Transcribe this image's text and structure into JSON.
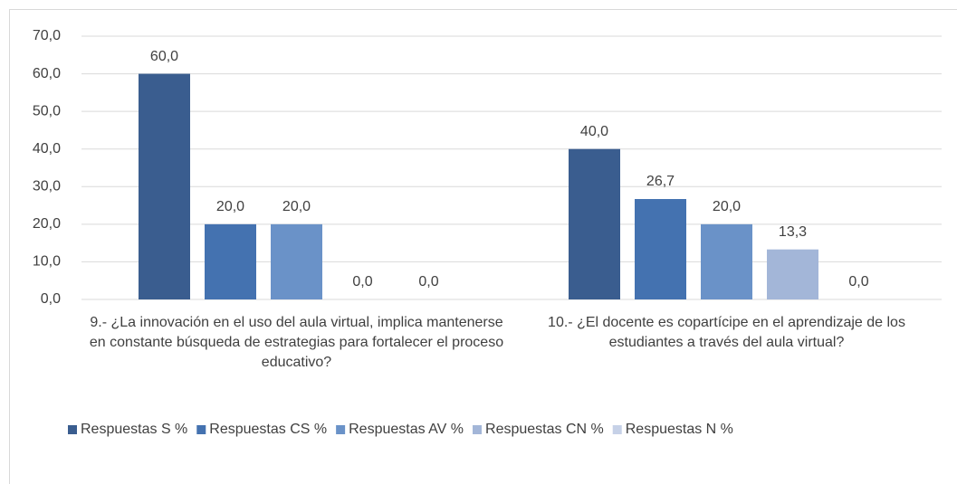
{
  "chart_data": {
    "type": "bar",
    "categories": [
      "9.- ¿La innovación en el uso del aula virtual, implica mantenerse en constante búsqueda de estrategias para fortalecer el proceso educativo?",
      "10.- ¿El docente es copartícipe en el aprendizaje de los estudiantes a través del aula virtual?"
    ],
    "series": [
      {
        "name": "Respuestas S %",
        "color": "#3a5d8f",
        "values": [
          60.0,
          40.0
        ],
        "value_labels": [
          "60,0",
          "40,0"
        ]
      },
      {
        "name": "Respuestas CS %",
        "color": "#4472b0",
        "values": [
          20.0,
          26.7
        ],
        "value_labels": [
          "20,0",
          "26,7"
        ]
      },
      {
        "name": "Respuestas AV %",
        "color": "#6a92c8",
        "values": [
          20.0,
          20.0
        ],
        "value_labels": [
          "20,0",
          "20,0"
        ]
      },
      {
        "name": "Respuestas CN %",
        "color": "#a3b6d8",
        "values": [
          0.0,
          13.3
        ],
        "value_labels": [
          "0,0",
          "13,3"
        ]
      },
      {
        "name": "Respuestas N %",
        "color": "#c6d1e7",
        "values": [
          0.0,
          0.0
        ],
        "value_labels": [
          "0,0",
          "0,0"
        ]
      }
    ],
    "ylim": [
      0,
      70
    ],
    "yticks": [
      {
        "value": 0,
        "label": "0,0"
      },
      {
        "value": 10,
        "label": "10,0"
      },
      {
        "value": 20,
        "label": "20,0"
      },
      {
        "value": 30,
        "label": "30,0"
      },
      {
        "value": 40,
        "label": "40,0"
      },
      {
        "value": 50,
        "label": "50,0"
      },
      {
        "value": 60,
        "label": "60,0"
      },
      {
        "value": 70,
        "label": "70,0"
      }
    ],
    "grid": true,
    "legend": "bottom"
  }
}
